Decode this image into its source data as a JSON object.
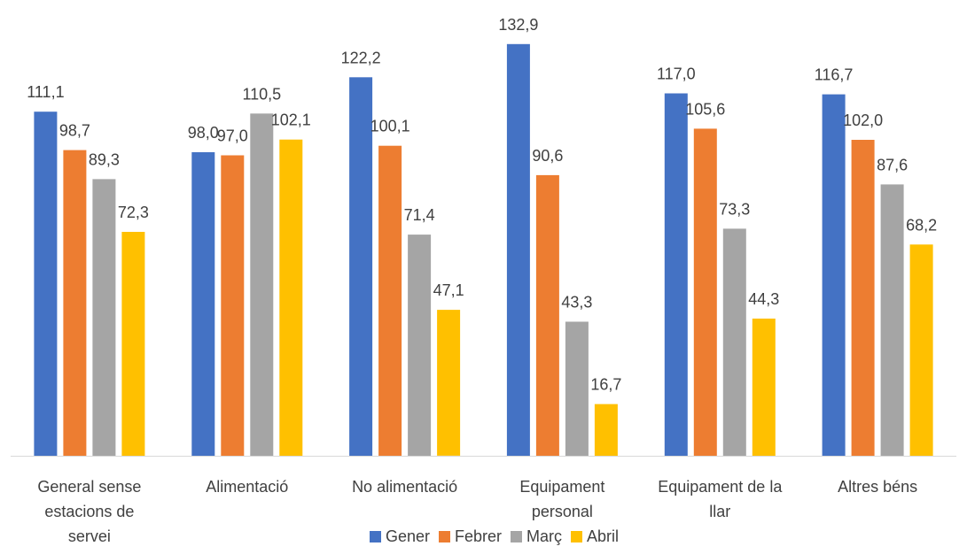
{
  "chart_data": {
    "type": "bar",
    "title": "",
    "xlabel": "",
    "ylabel": "",
    "ylim": [
      0,
      140
    ],
    "grid": false,
    "legend_position": "bottom",
    "categories": [
      [
        "General sense",
        "estacions de",
        "servei"
      ],
      [
        "Alimentació"
      ],
      [
        "No alimentació"
      ],
      [
        "Equipament",
        "personal"
      ],
      [
        "Equipament de la",
        "llar"
      ],
      [
        "Altres béns"
      ]
    ],
    "series": [
      {
        "name": "Gener",
        "color": "#4472C4",
        "values": [
          111.1,
          98.0,
          122.2,
          132.9,
          117.0,
          116.7
        ],
        "labels": [
          "111,1",
          "98,0",
          "122,2",
          "132,9",
          "117,0",
          "116,7"
        ]
      },
      {
        "name": "Febrer",
        "color": "#ED7D31",
        "values": [
          98.7,
          97.0,
          100.1,
          90.6,
          105.6,
          102.0
        ],
        "labels": [
          "98,7",
          "97,0",
          "100,1",
          "90,6",
          "105,6",
          "102,0"
        ]
      },
      {
        "name": "Març",
        "color": "#A5A5A5",
        "values": [
          89.3,
          110.5,
          71.4,
          43.3,
          73.3,
          87.6
        ],
        "labels": [
          "89,3",
          "110,5",
          "71,4",
          "43,3",
          "73,3",
          "87,6"
        ]
      },
      {
        "name": "Abril",
        "color": "#FFC000",
        "values": [
          72.3,
          102.1,
          47.1,
          16.7,
          44.3,
          68.2
        ],
        "labels": [
          "72,3",
          "102,1",
          "47,1",
          "16,7",
          "44,3",
          "68,2"
        ]
      }
    ]
  }
}
